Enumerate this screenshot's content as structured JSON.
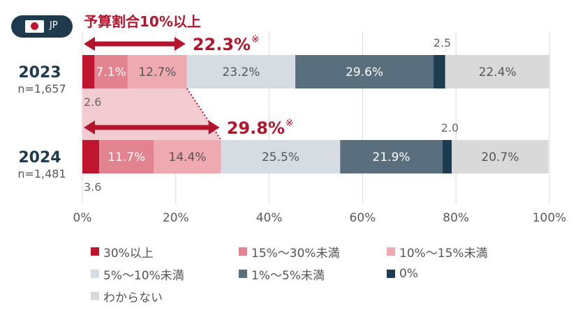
{
  "badge": {
    "label": "JP"
  },
  "chart_data": {
    "type": "bar",
    "orientation": "horizontal",
    "stacked": true,
    "categories": [
      "2023",
      "2024"
    ],
    "category_sublabels": [
      "n=1,657",
      "n=1,481"
    ],
    "xlim": [
      0,
      100
    ],
    "x_ticks": [
      "0%",
      "20%",
      "40%",
      "60%",
      "80%",
      "100%"
    ],
    "grid": true,
    "legend_position": "bottom",
    "series": [
      {
        "name": "30%以上",
        "values": [
          2.6,
          3.6
        ],
        "color": "#c0152f",
        "label_color": "#666666",
        "labels": [
          "2.6",
          "3.6"
        ]
      },
      {
        "name": "15%〜30%未満",
        "values": [
          7.1,
          11.7
        ],
        "color": "#e3838f",
        "label_color": "#ffffff",
        "labels": [
          "7.1%",
          "11.7%"
        ]
      },
      {
        "name": "10%〜15%未満",
        "values": [
          12.7,
          14.4
        ],
        "color": "#eea9b1",
        "label_color": "#555555",
        "labels": [
          "12.7%",
          "14.4%"
        ]
      },
      {
        "name": "5%〜10%未満",
        "values": [
          23.2,
          25.5
        ],
        "color": "#d5dde3",
        "label_color": "#555555",
        "labels": [
          "23.2%",
          "25.5%"
        ]
      },
      {
        "name": "1%〜5%未満",
        "values": [
          29.6,
          21.9
        ],
        "color": "#5a6f7e",
        "label_color": "#ffffff",
        "labels": [
          "29.6%",
          "21.9%"
        ]
      },
      {
        "name": "0%",
        "values": [
          2.5,
          2.0
        ],
        "color": "#1d3c50",
        "label_color": "#666666",
        "labels": [
          "2.5",
          "2.0"
        ]
      },
      {
        "name": "わからない",
        "values": [
          22.4,
          20.7
        ],
        "color": "#d9d9d9",
        "label_color": "#555555",
        "labels": [
          "22.4%",
          "20.7%"
        ]
      }
    ],
    "annotations": {
      "title": "予算割合10%以上",
      "totals": [
        {
          "value": 22.3,
          "text": "22.3%",
          "mark": "※"
        },
        {
          "value": 29.8,
          "text": "29.8%",
          "mark": "※"
        }
      ],
      "color": "#b5142d"
    }
  }
}
